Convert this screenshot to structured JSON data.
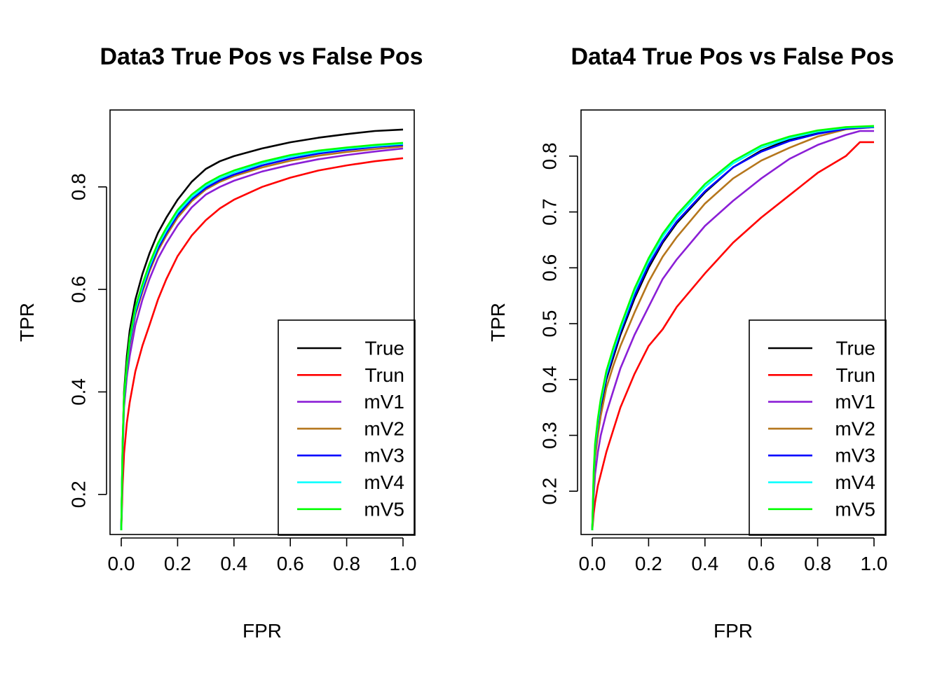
{
  "chart_data": [
    {
      "type": "line",
      "title": "Data3 True Pos vs False Pos",
      "xlabel": "FPR",
      "ylabel": "TPR",
      "xlim": [
        0,
        1
      ],
      "ylim": [
        0.13,
        0.92
      ],
      "xticks": [
        "0.0",
        "0.2",
        "0.4",
        "0.6",
        "0.8",
        "1.0"
      ],
      "yticks": [
        "0.2",
        "0.4",
        "0.6",
        "0.8"
      ],
      "legend_position": "bottom-right",
      "grid": false,
      "series": [
        {
          "name": "True",
          "color": "#000000",
          "x": [
            0,
            0.005,
            0.01,
            0.02,
            0.03,
            0.05,
            0.075,
            0.1,
            0.13,
            0.16,
            0.2,
            0.25,
            0.3,
            0.35,
            0.4,
            0.5,
            0.6,
            0.7,
            0.8,
            0.9,
            1.0
          ],
          "y": [
            0.13,
            0.3,
            0.4,
            0.47,
            0.52,
            0.58,
            0.63,
            0.67,
            0.71,
            0.74,
            0.775,
            0.81,
            0.835,
            0.85,
            0.86,
            0.875,
            0.887,
            0.896,
            0.903,
            0.909,
            0.912
          ]
        },
        {
          "name": "Trun",
          "color": "#ff0000",
          "x": [
            0,
            0.005,
            0.01,
            0.02,
            0.03,
            0.05,
            0.075,
            0.1,
            0.13,
            0.16,
            0.2,
            0.25,
            0.3,
            0.35,
            0.4,
            0.5,
            0.6,
            0.7,
            0.8,
            0.9,
            1.0
          ],
          "y": [
            0.13,
            0.22,
            0.28,
            0.34,
            0.38,
            0.44,
            0.49,
            0.53,
            0.58,
            0.62,
            0.665,
            0.705,
            0.735,
            0.758,
            0.775,
            0.8,
            0.818,
            0.832,
            0.842,
            0.85,
            0.856
          ]
        },
        {
          "name": "mV1",
          "color": "#8b1fd6",
          "x": [
            0,
            0.005,
            0.01,
            0.02,
            0.03,
            0.05,
            0.075,
            0.1,
            0.13,
            0.16,
            0.2,
            0.25,
            0.3,
            0.35,
            0.4,
            0.5,
            0.6,
            0.7,
            0.8,
            0.9,
            1.0
          ],
          "y": [
            0.13,
            0.28,
            0.37,
            0.43,
            0.47,
            0.53,
            0.58,
            0.62,
            0.66,
            0.69,
            0.725,
            0.76,
            0.785,
            0.8,
            0.812,
            0.83,
            0.843,
            0.854,
            0.862,
            0.869,
            0.875
          ]
        },
        {
          "name": "mV2",
          "color": "#b5761c",
          "x": [
            0,
            0.005,
            0.01,
            0.02,
            0.03,
            0.05,
            0.075,
            0.1,
            0.13,
            0.16,
            0.2,
            0.25,
            0.3,
            0.35,
            0.4,
            0.5,
            0.6,
            0.7,
            0.8,
            0.9,
            1.0
          ],
          "y": [
            0.13,
            0.29,
            0.38,
            0.44,
            0.49,
            0.55,
            0.595,
            0.635,
            0.675,
            0.705,
            0.74,
            0.772,
            0.795,
            0.81,
            0.821,
            0.838,
            0.851,
            0.861,
            0.868,
            0.874,
            0.879
          ]
        },
        {
          "name": "mV3",
          "color": "#0000ff",
          "x": [
            0,
            0.005,
            0.01,
            0.02,
            0.03,
            0.05,
            0.075,
            0.1,
            0.13,
            0.16,
            0.2,
            0.25,
            0.3,
            0.35,
            0.4,
            0.5,
            0.6,
            0.7,
            0.8,
            0.9,
            1.0
          ],
          "y": [
            0.13,
            0.295,
            0.385,
            0.445,
            0.495,
            0.555,
            0.6,
            0.64,
            0.68,
            0.71,
            0.745,
            0.776,
            0.798,
            0.813,
            0.824,
            0.842,
            0.855,
            0.865,
            0.872,
            0.878,
            0.882
          ]
        },
        {
          "name": "mV4",
          "color": "#00ffff",
          "x": [
            0,
            0.005,
            0.01,
            0.02,
            0.03,
            0.05,
            0.075,
            0.1,
            0.13,
            0.16,
            0.2,
            0.25,
            0.3,
            0.35,
            0.4,
            0.5,
            0.6,
            0.7,
            0.8,
            0.9,
            1.0
          ],
          "y": [
            0.13,
            0.3,
            0.39,
            0.45,
            0.5,
            0.56,
            0.605,
            0.645,
            0.685,
            0.715,
            0.75,
            0.78,
            0.802,
            0.817,
            0.828,
            0.846,
            0.859,
            0.868,
            0.875,
            0.88,
            0.884
          ]
        },
        {
          "name": "mV5",
          "color": "#00ff00",
          "x": [
            0,
            0.005,
            0.01,
            0.02,
            0.03,
            0.05,
            0.075,
            0.1,
            0.13,
            0.16,
            0.2,
            0.25,
            0.3,
            0.35,
            0.4,
            0.5,
            0.6,
            0.7,
            0.8,
            0.9,
            1.0
          ],
          "y": [
            0.13,
            0.305,
            0.395,
            0.455,
            0.505,
            0.565,
            0.61,
            0.65,
            0.69,
            0.72,
            0.755,
            0.785,
            0.806,
            0.821,
            0.832,
            0.849,
            0.862,
            0.871,
            0.877,
            0.882,
            0.886
          ]
        }
      ]
    },
    {
      "type": "line",
      "title": "Data4 True Pos vs False Pos",
      "xlabel": "FPR",
      "ylabel": "TPR",
      "xlim": [
        0,
        1
      ],
      "ylim": [
        0.13,
        0.855
      ],
      "xticks": [
        "0.0",
        "0.2",
        "0.4",
        "0.6",
        "0.8",
        "1.0"
      ],
      "yticks": [
        "0.2",
        "0.3",
        "0.4",
        "0.5",
        "0.6",
        "0.7",
        "0.8"
      ],
      "legend_position": "bottom-right",
      "grid": false,
      "series": [
        {
          "name": "True",
          "color": "#000000",
          "x": [
            0,
            0.005,
            0.01,
            0.02,
            0.03,
            0.05,
            0.075,
            0.1,
            0.15,
            0.2,
            0.25,
            0.3,
            0.4,
            0.5,
            0.6,
            0.7,
            0.8,
            0.9,
            1.0
          ],
          "y": [
            0.13,
            0.22,
            0.27,
            0.315,
            0.35,
            0.4,
            0.44,
            0.48,
            0.545,
            0.6,
            0.645,
            0.68,
            0.735,
            0.78,
            0.81,
            0.83,
            0.842,
            0.85,
            0.852
          ]
        },
        {
          "name": "Trun",
          "color": "#ff0000",
          "x": [
            0,
            0.005,
            0.01,
            0.02,
            0.03,
            0.05,
            0.075,
            0.1,
            0.15,
            0.2,
            0.25,
            0.3,
            0.4,
            0.5,
            0.6,
            0.7,
            0.8,
            0.9,
            0.95,
            1.0
          ],
          "y": [
            0.13,
            0.16,
            0.18,
            0.21,
            0.23,
            0.27,
            0.31,
            0.35,
            0.41,
            0.46,
            0.49,
            0.53,
            0.59,
            0.645,
            0.69,
            0.73,
            0.77,
            0.8,
            0.825,
            0.825
          ]
        },
        {
          "name": "mV1",
          "color": "#8b1fd6",
          "x": [
            0,
            0.005,
            0.01,
            0.02,
            0.03,
            0.05,
            0.075,
            0.1,
            0.15,
            0.2,
            0.25,
            0.3,
            0.4,
            0.5,
            0.6,
            0.7,
            0.8,
            0.9,
            0.95,
            1.0
          ],
          "y": [
            0.13,
            0.19,
            0.23,
            0.27,
            0.3,
            0.34,
            0.38,
            0.42,
            0.48,
            0.53,
            0.58,
            0.615,
            0.675,
            0.72,
            0.76,
            0.795,
            0.82,
            0.838,
            0.845,
            0.845
          ]
        },
        {
          "name": "mV2",
          "color": "#b5761c",
          "x": [
            0,
            0.005,
            0.01,
            0.02,
            0.03,
            0.05,
            0.075,
            0.1,
            0.15,
            0.2,
            0.25,
            0.3,
            0.4,
            0.5,
            0.6,
            0.7,
            0.8,
            0.9,
            1.0
          ],
          "y": [
            0.13,
            0.21,
            0.26,
            0.3,
            0.335,
            0.385,
            0.425,
            0.46,
            0.52,
            0.575,
            0.62,
            0.655,
            0.715,
            0.76,
            0.792,
            0.815,
            0.835,
            0.848,
            0.852
          ]
        },
        {
          "name": "mV3",
          "color": "#0000ff",
          "x": [
            0,
            0.005,
            0.01,
            0.02,
            0.03,
            0.05,
            0.075,
            0.1,
            0.15,
            0.2,
            0.25,
            0.3,
            0.4,
            0.5,
            0.6,
            0.7,
            0.8,
            0.9,
            1.0
          ],
          "y": [
            0.13,
            0.225,
            0.275,
            0.32,
            0.355,
            0.405,
            0.445,
            0.485,
            0.55,
            0.605,
            0.648,
            0.683,
            0.737,
            0.78,
            0.808,
            0.827,
            0.84,
            0.849,
            0.852
          ]
        },
        {
          "name": "mV4",
          "color": "#00ffff",
          "x": [
            0,
            0.005,
            0.01,
            0.02,
            0.03,
            0.05,
            0.075,
            0.1,
            0.15,
            0.2,
            0.25,
            0.3,
            0.4,
            0.5,
            0.6,
            0.7,
            0.8,
            0.9,
            1.0
          ],
          "y": [
            0.13,
            0.23,
            0.28,
            0.325,
            0.36,
            0.41,
            0.452,
            0.49,
            0.558,
            0.612,
            0.656,
            0.69,
            0.745,
            0.787,
            0.815,
            0.832,
            0.844,
            0.851,
            0.853
          ]
        },
        {
          "name": "mV5",
          "color": "#00ff00",
          "x": [
            0,
            0.005,
            0.01,
            0.02,
            0.03,
            0.05,
            0.075,
            0.1,
            0.15,
            0.2,
            0.25,
            0.3,
            0.4,
            0.5,
            0.6,
            0.7,
            0.8,
            0.9,
            1.0
          ],
          "y": [
            0.13,
            0.235,
            0.285,
            0.33,
            0.365,
            0.415,
            0.457,
            0.495,
            0.563,
            0.617,
            0.661,
            0.695,
            0.75,
            0.791,
            0.819,
            0.835,
            0.846,
            0.852,
            0.854
          ]
        }
      ]
    }
  ]
}
